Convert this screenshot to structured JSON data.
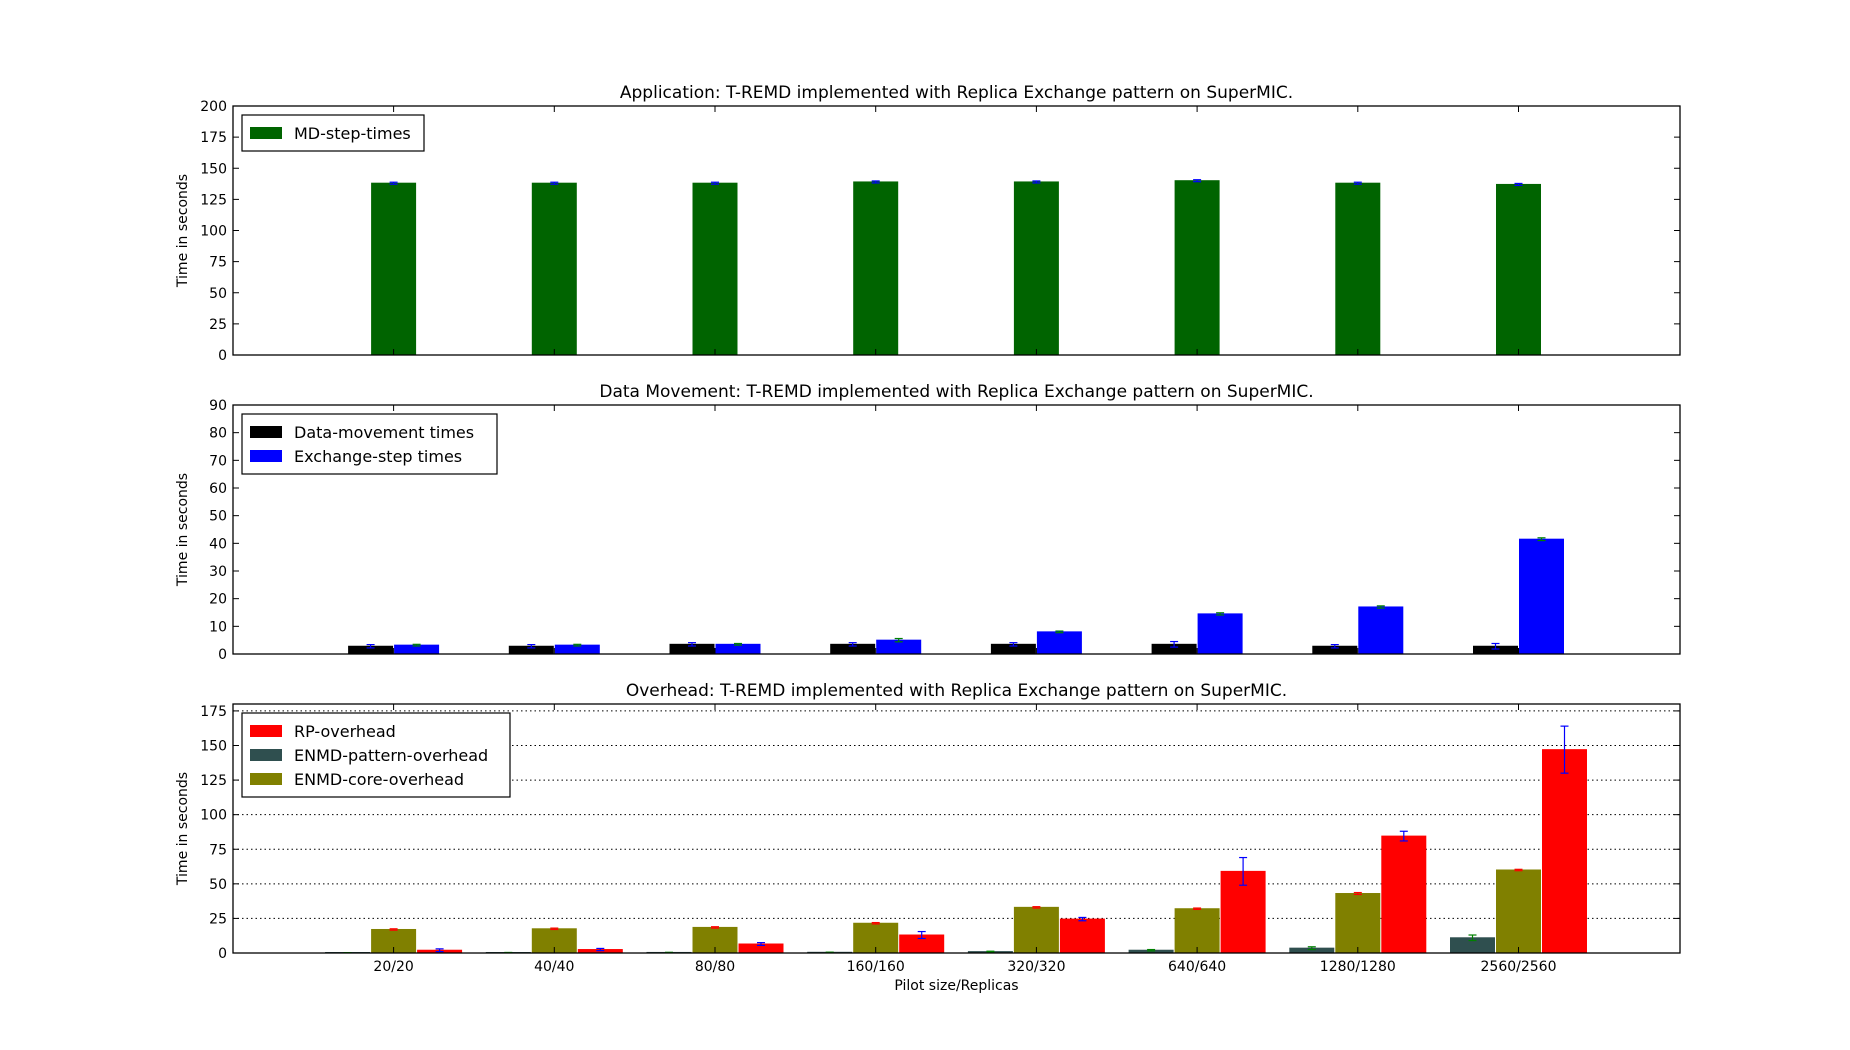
{
  "chart_data": [
    {
      "type": "bar",
      "title": "Application: T-REMD implemented with Replica Exchange pattern on SuperMIC.",
      "xlabel": "",
      "ylabel": "Time in seconds",
      "ylim": [
        0,
        200
      ],
      "yticks": [
        0,
        25,
        50,
        75,
        100,
        125,
        150,
        175,
        200
      ],
      "grid": false,
      "legend": "top-left",
      "categories": [
        "20/20",
        "40/40",
        "80/80",
        "160/160",
        "320/320",
        "640/640",
        "1280/1280",
        "2560/2560"
      ],
      "series": [
        {
          "name": "MD-step-times",
          "color": "#006400",
          "errcolor": "#0000ff",
          "values": [
            138,
            138,
            138,
            139,
            139,
            140,
            138,
            137
          ],
          "errors": [
            0.8,
            0.8,
            0.8,
            0.8,
            0.8,
            0.8,
            0.8,
            0.8
          ]
        }
      ]
    },
    {
      "type": "bar",
      "title": "Data Movement: T-REMD implemented with Replica Exchange pattern on SuperMIC.",
      "xlabel": "",
      "ylabel": "Time in seconds",
      "ylim": [
        0,
        90
      ],
      "yticks": [
        0,
        10,
        20,
        30,
        40,
        50,
        60,
        70,
        80,
        90
      ],
      "grid": false,
      "legend": "top-left",
      "categories": [
        "20/20",
        "40/40",
        "80/80",
        "160/160",
        "320/320",
        "640/640",
        "1280/1280",
        "2560/2560"
      ],
      "series": [
        {
          "name": "Data-movement times",
          "color": "#000000",
          "errcolor": "#0000ff",
          "values": [
            2.8,
            2.8,
            3.5,
            3.5,
            3.5,
            3.5,
            2.8,
            2.8
          ],
          "errors": [
            0.6,
            0.6,
            0.6,
            0.6,
            0.6,
            1.0,
            0.6,
            1.0
          ]
        },
        {
          "name": "Exchange-step times",
          "color": "#0000ff",
          "errcolor": "#008000",
          "values": [
            3.2,
            3.2,
            3.5,
            5,
            8,
            14.5,
            17,
            41.5
          ],
          "errors": [
            0.3,
            0.3,
            0.3,
            0.6,
            0.3,
            0.4,
            0.4,
            0.5
          ]
        }
      ]
    },
    {
      "type": "bar",
      "title": "Overhead: T-REMD implemented with Replica Exchange pattern on SuperMIC.",
      "xlabel": "Pilot size/Replicas",
      "ylabel": "Time in seconds",
      "ylim": [
        0,
        180
      ],
      "yticks": [
        0,
        25,
        50,
        75,
        100,
        125,
        150,
        175
      ],
      "grid": true,
      "legend": "top-left",
      "categories": [
        "20/20",
        "40/40",
        "80/80",
        "160/160",
        "320/320",
        "640/640",
        "1280/1280",
        "2560/2560"
      ],
      "series": [
        {
          "name": "ENMD-pattern-overhead",
          "color": "#2f4f4f",
          "errcolor": "#008000",
          "values": [
            0.2,
            0.3,
            0.4,
            0.5,
            1,
            2,
            3.5,
            11
          ],
          "errors": [
            0.1,
            0.1,
            0.1,
            0.1,
            0.3,
            0.5,
            1,
            2
          ]
        },
        {
          "name": "ENMD-core-overhead",
          "color": "#808000",
          "errcolor": "#ff0000",
          "values": [
            17,
            17.5,
            18.5,
            21.5,
            33,
            32,
            43,
            60
          ],
          "errors": [
            0.5,
            0.5,
            0.5,
            0.5,
            0.5,
            0.5,
            0.7,
            0.5
          ]
        },
        {
          "name": "RP-overhead",
          "color": "#ff0000",
          "errcolor": "#0000ff",
          "values": [
            2,
            2.5,
            6.5,
            13,
            24.5,
            59,
            84.5,
            147
          ],
          "errors": [
            1,
            0.8,
            1,
            2.5,
            1.2,
            10,
            3.5,
            17
          ]
        }
      ],
      "legend_order": [
        "RP-overhead",
        "ENMD-pattern-overhead",
        "ENMD-core-overhead"
      ]
    }
  ]
}
